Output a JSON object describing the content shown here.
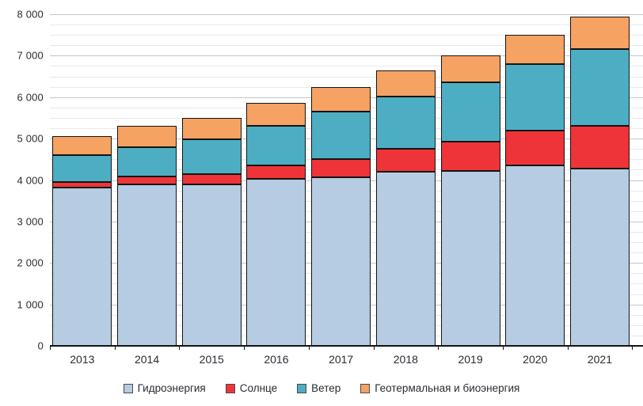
{
  "chart_data": {
    "type": "bar",
    "stacked": true,
    "title": "",
    "xlabel": "",
    "ylabel": "",
    "categories": [
      "2013",
      "2014",
      "2015",
      "2016",
      "2017",
      "2018",
      "2019",
      "2020",
      "2021"
    ],
    "series": [
      {
        "name": "Гидроэнергия",
        "color": "#b5cce2",
        "values": [
          3817,
          3890,
          3888,
          4022,
          4065,
          4193,
          4222,
          4355,
          4274
        ]
      },
      {
        "name": "Солнце",
        "color": "#ee3438",
        "values": [
          139,
          197,
          256,
          328,
          444,
          562,
          707,
          846,
          1033
        ]
      },
      {
        "name": "Ветер",
        "color": "#4daec3",
        "values": [
          645,
          706,
          831,
          958,
          1140,
          1263,
          1420,
          1596,
          1862
        ]
      },
      {
        "name": "Геотермальная и биоэнергия",
        "color": "#f6a263",
        "values": [
          462,
          510,
          527,
          557,
          592,
          625,
          652,
          700,
          767
        ]
      }
    ],
    "ylim": [
      0,
      8000
    ],
    "y_major_step": 1000,
    "y_minor_step": 250,
    "y_tick_labels": [
      "0",
      "1 000",
      "2 000",
      "3 000",
      "4 000",
      "5 000",
      "6 000",
      "7 000",
      "8 000"
    ],
    "grid": "horizontal major+minor",
    "legend_position": "bottom"
  },
  "colors": {
    "background": "#ffffff",
    "bar_border": "#141414",
    "axis_line": "#141414",
    "grid_major": "#c6c6c6",
    "grid_minor": "#e8e8e8",
    "text": "#2b2b33"
  }
}
